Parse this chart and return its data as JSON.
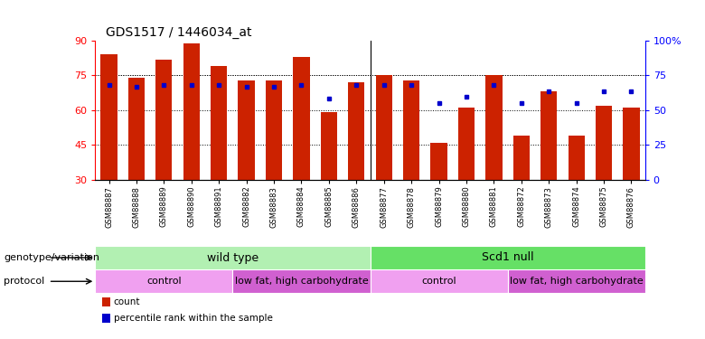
{
  "title": "GDS1517 / 1446034_at",
  "samples": [
    "GSM88887",
    "GSM88888",
    "GSM88889",
    "GSM88890",
    "GSM88891",
    "GSM88882",
    "GSM88883",
    "GSM88884",
    "GSM88885",
    "GSM88886",
    "GSM88877",
    "GSM88878",
    "GSM88879",
    "GSM88880",
    "GSM88881",
    "GSM88872",
    "GSM88873",
    "GSM88874",
    "GSM88875",
    "GSM88876"
  ],
  "bar_values": [
    84,
    74,
    82,
    89,
    79,
    73,
    73,
    83,
    59,
    72,
    75,
    73,
    46,
    61,
    75,
    49,
    68,
    49,
    62,
    61
  ],
  "dot_values": [
    71,
    70,
    71,
    71,
    71,
    70,
    70,
    71,
    65,
    71,
    71,
    71,
    63,
    66,
    71,
    63,
    68,
    63,
    68,
    68
  ],
  "bar_color": "#cc2200",
  "dot_color": "#0000cc",
  "ymin": 30,
  "ymax": 90,
  "right_yticks": [
    0,
    25,
    50,
    75,
    100
  ],
  "right_yticklabels": [
    "0",
    "25",
    "50",
    "75",
    "100%"
  ],
  "left_yticks": [
    30,
    45,
    60,
    75,
    90
  ],
  "grid_values": [
    45,
    60,
    75
  ],
  "genotype_groups": [
    {
      "label": "wild type",
      "start": 0,
      "end": 10,
      "color": "#b2f0b2"
    },
    {
      "label": "Scd1 null",
      "start": 10,
      "end": 20,
      "color": "#66e066"
    }
  ],
  "protocol_groups": [
    {
      "label": "control",
      "start": 0,
      "end": 5,
      "color": "#f0a0f0"
    },
    {
      "label": "low fat, high carbohydrate",
      "start": 5,
      "end": 10,
      "color": "#d060d0"
    },
    {
      "label": "control",
      "start": 10,
      "end": 15,
      "color": "#f0a0f0"
    },
    {
      "label": "low fat, high carbohydrate",
      "start": 15,
      "end": 20,
      "color": "#d060d0"
    }
  ],
  "legend_items": [
    {
      "label": "count",
      "color": "#cc2200"
    },
    {
      "label": "percentile rank within the sample",
      "color": "#0000cc"
    }
  ],
  "label_genotype": "genotype/variation",
  "label_protocol": "protocol",
  "background_color": "#ffffff"
}
